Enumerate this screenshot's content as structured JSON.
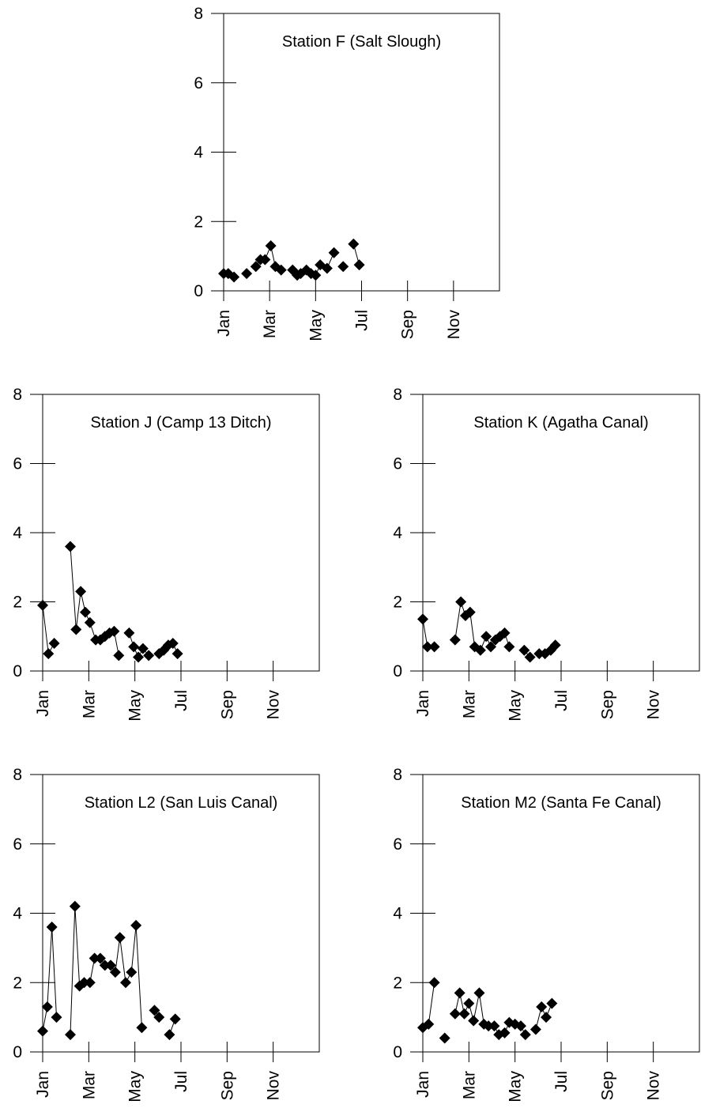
{
  "chart_data": [
    {
      "type": "scatter",
      "title": "Station F (Salt Slough)",
      "x_ticks": [
        "Jan",
        "Mar",
        "May",
        "Jul",
        "Sep",
        "Nov"
      ],
      "y_ticks": [
        "0",
        "2",
        "4",
        "6",
        "8"
      ],
      "ylim": [
        0,
        8
      ],
      "x_unit": "months since Jan 1",
      "xlim": [
        0,
        12
      ],
      "series": [
        {
          "points": [
            {
              "x": 0.0,
              "y": 0.5,
              "connected": true
            },
            {
              "x": 0.2,
              "y": 0.5,
              "connected": true
            },
            {
              "x": 0.45,
              "y": 0.4,
              "connected": false
            },
            {
              "x": 1.0,
              "y": 0.5,
              "connected": false
            },
            {
              "x": 1.4,
              "y": 0.7,
              "connected": true
            },
            {
              "x": 1.6,
              "y": 0.9,
              "connected": true
            },
            {
              "x": 1.8,
              "y": 0.9,
              "connected": true
            },
            {
              "x": 2.05,
              "y": 1.3,
              "connected": true
            },
            {
              "x": 2.25,
              "y": 0.7,
              "connected": true
            },
            {
              "x": 2.5,
              "y": 0.6,
              "connected": false
            },
            {
              "x": 3.0,
              "y": 0.6,
              "connected": true
            },
            {
              "x": 3.2,
              "y": 0.45,
              "connected": true
            },
            {
              "x": 3.35,
              "y": 0.5,
              "connected": true
            },
            {
              "x": 3.6,
              "y": 0.6,
              "connected": true
            },
            {
              "x": 3.8,
              "y": 0.5,
              "connected": true
            },
            {
              "x": 4.0,
              "y": 0.45,
              "connected": true
            },
            {
              "x": 4.2,
              "y": 0.75,
              "connected": true
            },
            {
              "x": 4.5,
              "y": 0.65,
              "connected": true
            },
            {
              "x": 4.8,
              "y": 1.1,
              "connected": false
            },
            {
              "x": 5.2,
              "y": 0.7,
              "connected": false
            },
            {
              "x": 5.65,
              "y": 1.35,
              "connected": true
            },
            {
              "x": 5.9,
              "y": 0.75,
              "connected": true
            }
          ]
        }
      ]
    },
    {
      "type": "scatter",
      "title": "Station J (Camp 13 Ditch)",
      "x_ticks": [
        "Jan",
        "Mar",
        "May",
        "Jul",
        "Sep",
        "Nov"
      ],
      "y_ticks": [
        "0",
        "2",
        "4",
        "6",
        "8"
      ],
      "ylim": [
        0,
        8
      ],
      "x_unit": "months since Jan 1",
      "xlim": [
        0,
        12
      ],
      "series": [
        {
          "points": [
            {
              "x": 0.0,
              "y": 1.9,
              "connected": true
            },
            {
              "x": 0.25,
              "y": 0.5,
              "connected": true
            },
            {
              "x": 0.5,
              "y": 0.8,
              "connected": false
            },
            {
              "x": 1.2,
              "y": 3.6,
              "connected": true
            },
            {
              "x": 1.45,
              "y": 1.2,
              "connected": true
            },
            {
              "x": 1.65,
              "y": 2.3,
              "connected": true
            },
            {
              "x": 1.85,
              "y": 1.7,
              "connected": true
            },
            {
              "x": 2.05,
              "y": 1.4,
              "connected": true
            },
            {
              "x": 2.3,
              "y": 0.9,
              "connected": true
            },
            {
              "x": 2.5,
              "y": 0.9,
              "connected": true
            },
            {
              "x": 2.7,
              "y": 1.0,
              "connected": true
            },
            {
              "x": 2.9,
              "y": 1.1,
              "connected": true
            },
            {
              "x": 3.1,
              "y": 1.15,
              "connected": true
            },
            {
              "x": 3.3,
              "y": 0.45,
              "connected": false
            },
            {
              "x": 3.75,
              "y": 1.1,
              "connected": true
            },
            {
              "x": 3.95,
              "y": 0.7,
              "connected": true
            },
            {
              "x": 4.15,
              "y": 0.4,
              "connected": true
            },
            {
              "x": 4.35,
              "y": 0.65,
              "connected": true
            },
            {
              "x": 4.6,
              "y": 0.45,
              "connected": false
            },
            {
              "x": 5.05,
              "y": 0.5,
              "connected": true
            },
            {
              "x": 5.25,
              "y": 0.6,
              "connected": true
            },
            {
              "x": 5.45,
              "y": 0.75,
              "connected": true
            },
            {
              "x": 5.65,
              "y": 0.8,
              "connected": true
            },
            {
              "x": 5.85,
              "y": 0.5,
              "connected": true
            }
          ]
        }
      ]
    },
    {
      "type": "scatter",
      "title": "Station K (Agatha Canal)",
      "x_ticks": [
        "Jan",
        "Mar",
        "May",
        "Jul",
        "Sep",
        "Nov"
      ],
      "y_ticks": [
        "0",
        "2",
        "4",
        "6",
        "8"
      ],
      "ylim": [
        0,
        8
      ],
      "x_unit": "months since Jan 1",
      "xlim": [
        0,
        12
      ],
      "series": [
        {
          "points": [
            {
              "x": 0.0,
              "y": 1.5,
              "connected": true
            },
            {
              "x": 0.2,
              "y": 0.7,
              "connected": true
            },
            {
              "x": 0.5,
              "y": 0.7,
              "connected": false
            },
            {
              "x": 1.4,
              "y": 0.9,
              "connected": true
            },
            {
              "x": 1.65,
              "y": 2.0,
              "connected": true
            },
            {
              "x": 1.85,
              "y": 1.6,
              "connected": true
            },
            {
              "x": 2.05,
              "y": 1.7,
              "connected": true
            },
            {
              "x": 2.25,
              "y": 0.7,
              "connected": true
            },
            {
              "x": 2.5,
              "y": 0.6,
              "connected": true
            },
            {
              "x": 2.75,
              "y": 1.0,
              "connected": true
            },
            {
              "x": 2.95,
              "y": 0.7,
              "connected": true
            },
            {
              "x": 3.15,
              "y": 0.9,
              "connected": true
            },
            {
              "x": 3.35,
              "y": 1.0,
              "connected": true
            },
            {
              "x": 3.55,
              "y": 1.1,
              "connected": true
            },
            {
              "x": 3.75,
              "y": 0.7,
              "connected": false
            },
            {
              "x": 4.4,
              "y": 0.6,
              "connected": true
            },
            {
              "x": 4.65,
              "y": 0.4,
              "connected": false
            },
            {
              "x": 5.05,
              "y": 0.5,
              "connected": true
            },
            {
              "x": 5.3,
              "y": 0.5,
              "connected": true
            },
            {
              "x": 5.55,
              "y": 0.6,
              "connected": true
            },
            {
              "x": 5.75,
              "y": 0.75,
              "connected": true
            }
          ]
        }
      ]
    },
    {
      "type": "scatter",
      "title": "Station L2 (San Luis Canal)",
      "x_ticks": [
        "Jan",
        "Mar",
        "May",
        "Jul",
        "Sep",
        "Nov"
      ],
      "y_ticks": [
        "0",
        "2",
        "4",
        "6",
        "8"
      ],
      "ylim": [
        0,
        8
      ],
      "x_unit": "months since Jan 1",
      "xlim": [
        0,
        12
      ],
      "series": [
        {
          "points": [
            {
              "x": 0.0,
              "y": 0.6,
              "connected": true
            },
            {
              "x": 0.2,
              "y": 1.3,
              "connected": true
            },
            {
              "x": 0.4,
              "y": 3.6,
              "connected": true
            },
            {
              "x": 0.6,
              "y": 1.0,
              "connected": false
            },
            {
              "x": 1.2,
              "y": 0.5,
              "connected": true
            },
            {
              "x": 1.4,
              "y": 4.2,
              "connected": true
            },
            {
              "x": 1.6,
              "y": 1.9,
              "connected": true
            },
            {
              "x": 1.8,
              "y": 2.0,
              "connected": true
            },
            {
              "x": 2.05,
              "y": 2.0,
              "connected": true
            },
            {
              "x": 2.25,
              "y": 2.7,
              "connected": true
            },
            {
              "x": 2.5,
              "y": 2.7,
              "connected": true
            },
            {
              "x": 2.7,
              "y": 2.5,
              "connected": true
            },
            {
              "x": 2.95,
              "y": 2.5,
              "connected": true
            },
            {
              "x": 3.15,
              "y": 2.3,
              "connected": true
            },
            {
              "x": 3.35,
              "y": 3.3,
              "connected": true
            },
            {
              "x": 3.6,
              "y": 2.0,
              "connected": true
            },
            {
              "x": 3.85,
              "y": 2.3,
              "connected": true
            },
            {
              "x": 4.05,
              "y": 3.65,
              "connected": true
            },
            {
              "x": 4.3,
              "y": 0.7,
              "connected": false
            },
            {
              "x": 4.85,
              "y": 1.2,
              "connected": true
            },
            {
              "x": 5.05,
              "y": 1.0,
              "connected": false
            },
            {
              "x": 5.5,
              "y": 0.5,
              "connected": true
            },
            {
              "x": 5.75,
              "y": 0.95,
              "connected": true
            }
          ]
        }
      ]
    },
    {
      "type": "scatter",
      "title": "Station M2 (Santa Fe Canal)",
      "x_ticks": [
        "Jan",
        "Mar",
        "May",
        "Jul",
        "Sep",
        "Nov"
      ],
      "y_ticks": [
        "0",
        "2",
        "4",
        "6",
        "8"
      ],
      "ylim": [
        0,
        8
      ],
      "x_unit": "months since Jan 1",
      "xlim": [
        0,
        12
      ],
      "series": [
        {
          "points": [
            {
              "x": 0.0,
              "y": 0.7,
              "connected": true
            },
            {
              "x": 0.25,
              "y": 0.8,
              "connected": true
            },
            {
              "x": 0.5,
              "y": 2.0,
              "connected": false
            },
            {
              "x": 0.95,
              "y": 0.4,
              "connected": false
            },
            {
              "x": 1.4,
              "y": 1.1,
              "connected": true
            },
            {
              "x": 1.6,
              "y": 1.7,
              "connected": true
            },
            {
              "x": 1.8,
              "y": 1.1,
              "connected": true
            },
            {
              "x": 2.0,
              "y": 1.4,
              "connected": true
            },
            {
              "x": 2.2,
              "y": 0.9,
              "connected": true
            },
            {
              "x": 2.45,
              "y": 1.7,
              "connected": true
            },
            {
              "x": 2.65,
              "y": 0.8,
              "connected": true
            },
            {
              "x": 2.85,
              "y": 0.75,
              "connected": true
            },
            {
              "x": 3.1,
              "y": 0.75,
              "connected": true
            },
            {
              "x": 3.3,
              "y": 0.5,
              "connected": true
            },
            {
              "x": 3.55,
              "y": 0.55,
              "connected": true
            },
            {
              "x": 3.75,
              "y": 0.85,
              "connected": true
            },
            {
              "x": 4.0,
              "y": 0.8,
              "connected": true
            },
            {
              "x": 4.25,
              "y": 0.75,
              "connected": true
            },
            {
              "x": 4.45,
              "y": 0.5,
              "connected": false
            },
            {
              "x": 4.9,
              "y": 0.65,
              "connected": true
            },
            {
              "x": 5.15,
              "y": 1.3,
              "connected": true
            },
            {
              "x": 5.35,
              "y": 1.0,
              "connected": true
            },
            {
              "x": 5.6,
              "y": 1.4,
              "connected": true
            }
          ]
        }
      ]
    }
  ]
}
